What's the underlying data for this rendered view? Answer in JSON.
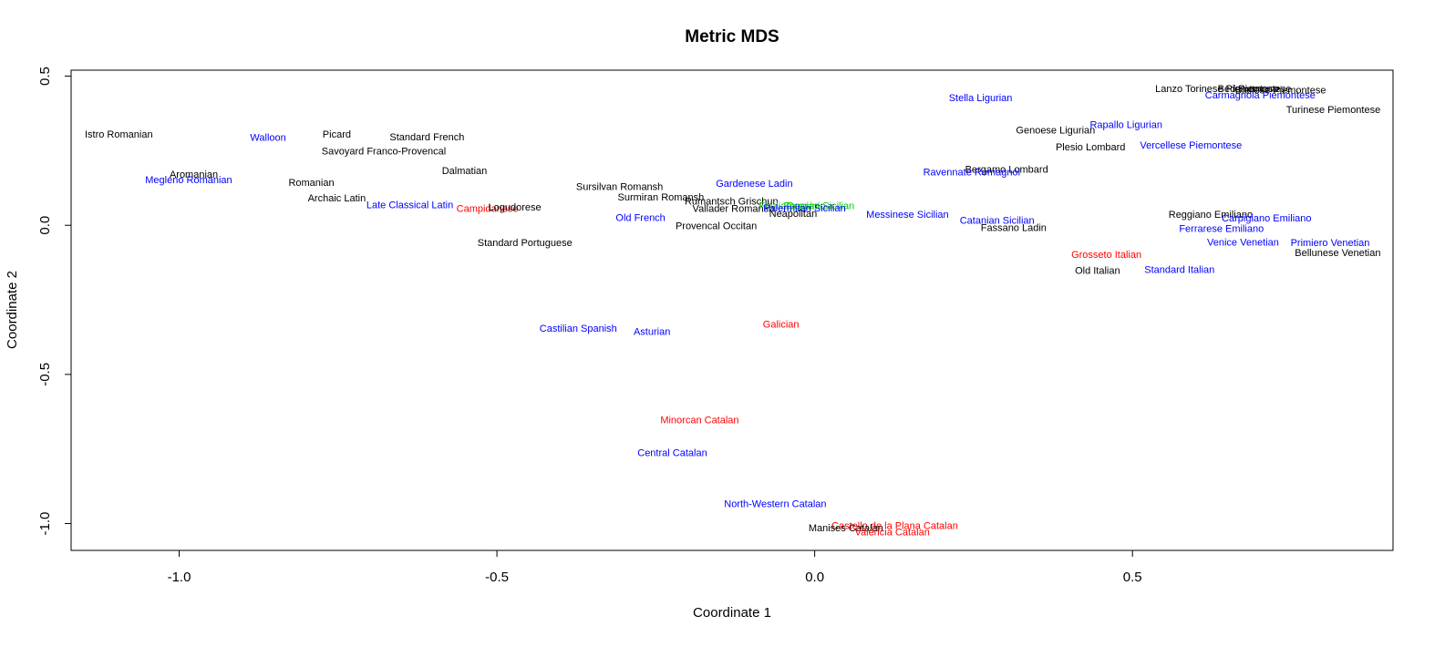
{
  "chart_data": {
    "type": "scatter",
    "title": "Metric MDS",
    "xlabel": "Coordinate 1",
    "ylabel": "Coordinate 2",
    "xlim": [
      -1.17,
      0.91
    ],
    "ylim": [
      -1.09,
      0.52
    ],
    "xticks": [
      -1.0,
      -0.5,
      0.0,
      0.5
    ],
    "xtick_labels": [
      "-1.0",
      "-0.5",
      "0.0",
      "0.5"
    ],
    "yticks": [
      -1.0,
      -0.5,
      0.0,
      0.5
    ],
    "ytick_labels": [
      "-1.0",
      "-0.5",
      "0.0",
      "0.5"
    ],
    "grid": false,
    "colors": {
      "black": "#000000",
      "blue": "#0000ff",
      "red": "#ff0000",
      "green": "#00cc00"
    },
    "points": [
      {
        "label": "Istro Romanian",
        "x": -1.095,
        "y": 0.306,
        "color": "#000000"
      },
      {
        "label": "Walloon",
        "x": -0.86,
        "y": 0.296,
        "color": "#0000ff"
      },
      {
        "label": "Picard",
        "x": -0.752,
        "y": 0.306,
        "color": "#000000"
      },
      {
        "label": "Standard French",
        "x": -0.61,
        "y": 0.297,
        "color": "#000000"
      },
      {
        "label": "Savoyard Franco-Provencal",
        "x": -0.678,
        "y": 0.25,
        "color": "#000000"
      },
      {
        "label": "Aromanian",
        "x": -0.977,
        "y": 0.172,
        "color": "#000000"
      },
      {
        "label": "Megleno Romanian",
        "x": -0.985,
        "y": 0.154,
        "color": "#0000ff"
      },
      {
        "label": "Dalmatian",
        "x": -0.551,
        "y": 0.184,
        "color": "#000000"
      },
      {
        "label": "Romanian",
        "x": -0.792,
        "y": 0.144,
        "color": "#000000"
      },
      {
        "label": "Archaic Latin",
        "x": -0.752,
        "y": 0.092,
        "color": "#000000"
      },
      {
        "label": "Late Classical Latin",
        "x": -0.637,
        "y": 0.069,
        "color": "#0000ff"
      },
      {
        "label": "Campidanese",
        "x": -0.515,
        "y": 0.057,
        "color": "#ff0000"
      },
      {
        "label": "Logudorese",
        "x": -0.472,
        "y": 0.062,
        "color": "#000000"
      },
      {
        "label": "Standard Portuguese",
        "x": -0.456,
        "y": -0.058,
        "color": "#000000"
      },
      {
        "label": "Sursilvan Romansh",
        "x": -0.307,
        "y": 0.13,
        "color": "#000000"
      },
      {
        "label": "Surmiran Romansh",
        "x": -0.242,
        "y": 0.095,
        "color": "#000000"
      },
      {
        "label": "Old French",
        "x": -0.274,
        "y": 0.026,
        "color": "#0000ff"
      },
      {
        "label": "Provencal Occitan",
        "x": -0.155,
        "y": -0.001,
        "color": "#000000"
      },
      {
        "label": "Gardenese Ladin",
        "x": -0.095,
        "y": 0.141,
        "color": "#0000ff"
      },
      {
        "label": "Rumantsch Grischun",
        "x": -0.131,
        "y": 0.081,
        "color": "#000000"
      },
      {
        "label": "Vallader Romansh",
        "x": -0.128,
        "y": 0.057,
        "color": "#000000"
      },
      {
        "label": "Friulian",
        "x": -0.062,
        "y": 0.066,
        "color": "#00cc00"
      },
      {
        "label": "Foggiano",
        "x": -0.016,
        "y": 0.066,
        "color": "#00cc00"
      },
      {
        "label": "Ocasini Sicilian",
        "x": 0.009,
        "y": 0.066,
        "color": "#00cc00"
      },
      {
        "label": "Palermitan Sicilian",
        "x": -0.016,
        "y": 0.058,
        "color": "#0000ff"
      },
      {
        "label": "Neapolitan",
        "x": -0.034,
        "y": 0.04,
        "color": "#000000"
      },
      {
        "label": "Messinese Sicilian",
        "x": 0.146,
        "y": 0.038,
        "color": "#0000ff"
      },
      {
        "label": "Catanian Sicilian",
        "x": 0.287,
        "y": 0.018,
        "color": "#0000ff"
      },
      {
        "label": "Fassano Ladin",
        "x": 0.313,
        "y": -0.007,
        "color": "#000000"
      },
      {
        "label": "Stella Ligurian",
        "x": 0.261,
        "y": 0.428,
        "color": "#0000ff"
      },
      {
        "label": "Genoese Ligurian",
        "x": 0.379,
        "y": 0.32,
        "color": "#000000"
      },
      {
        "label": "Rapallo Ligurian",
        "x": 0.49,
        "y": 0.338,
        "color": "#0000ff"
      },
      {
        "label": "Plesio Lombard",
        "x": 0.434,
        "y": 0.263,
        "color": "#000000"
      },
      {
        "label": "Vercellese Piemontese",
        "x": 0.592,
        "y": 0.27,
        "color": "#0000ff"
      },
      {
        "label": "Bergamo Lombard",
        "x": 0.302,
        "y": 0.189,
        "color": "#000000"
      },
      {
        "label": "Ravennate Romagnol",
        "x": 0.247,
        "y": 0.179,
        "color": "#0000ff"
      },
      {
        "label": "Lanzo Torinese Piemontese",
        "x": 0.633,
        "y": 0.459,
        "color": "#000000"
      },
      {
        "label": "Bed Piemontese",
        "x": 0.692,
        "y": 0.459,
        "color": "#000000"
      },
      {
        "label": "Biellese Piemontese",
        "x": 0.733,
        "y": 0.454,
        "color": "#000000"
      },
      {
        "label": "Carmagnola Piemontese",
        "x": 0.701,
        "y": 0.438,
        "color": "#0000ff"
      },
      {
        "label": "Turinese Piemontese",
        "x": 0.816,
        "y": 0.388,
        "color": "#000000"
      },
      {
        "label": "Reggiano Emiliano",
        "x": 0.623,
        "y": 0.037,
        "color": "#000000"
      },
      {
        "label": "Carpigiano Emiliano",
        "x": 0.711,
        "y": 0.025,
        "color": "#0000ff"
      },
      {
        "label": "Ferrarese Emiliano",
        "x": 0.64,
        "y": -0.01,
        "color": "#0000ff"
      },
      {
        "label": "Venice Venetian",
        "x": 0.674,
        "y": -0.056,
        "color": "#0000ff"
      },
      {
        "label": "Primiero Venetian",
        "x": 0.811,
        "y": -0.058,
        "color": "#0000ff"
      },
      {
        "label": "Bellunese Venetian",
        "x": 0.823,
        "y": -0.091,
        "color": "#000000"
      },
      {
        "label": "Grosseto Italian",
        "x": 0.459,
        "y": -0.097,
        "color": "#ff0000"
      },
      {
        "label": "Old Italian",
        "x": 0.445,
        "y": -0.15,
        "color": "#000000"
      },
      {
        "label": "Standard Italian",
        "x": 0.574,
        "y": -0.148,
        "color": "#0000ff"
      },
      {
        "label": "Castilian Spanish",
        "x": -0.372,
        "y": -0.344,
        "color": "#0000ff"
      },
      {
        "label": "Asturian",
        "x": -0.256,
        "y": -0.355,
        "color": "#0000ff"
      },
      {
        "label": "Galician",
        "x": -0.053,
        "y": -0.331,
        "color": "#ff0000"
      },
      {
        "label": "Minorcan Catalan",
        "x": -0.181,
        "y": -0.652,
        "color": "#ff0000"
      },
      {
        "label": "Central Catalan",
        "x": -0.224,
        "y": -0.762,
        "color": "#0000ff"
      },
      {
        "label": "North-Western Catalan",
        "x": -0.062,
        "y": -0.933,
        "color": "#0000ff"
      },
      {
        "label": "Castello de la Plana Catalan",
        "x": 0.126,
        "y": -1.006,
        "color": "#ff0000"
      },
      {
        "label": "Manises Catalan",
        "x": 0.049,
        "y": -1.014,
        "color": "#000000"
      },
      {
        "label": "Valencia Catalan",
        "x": 0.122,
        "y": -1.027,
        "color": "#ff0000"
      }
    ]
  }
}
